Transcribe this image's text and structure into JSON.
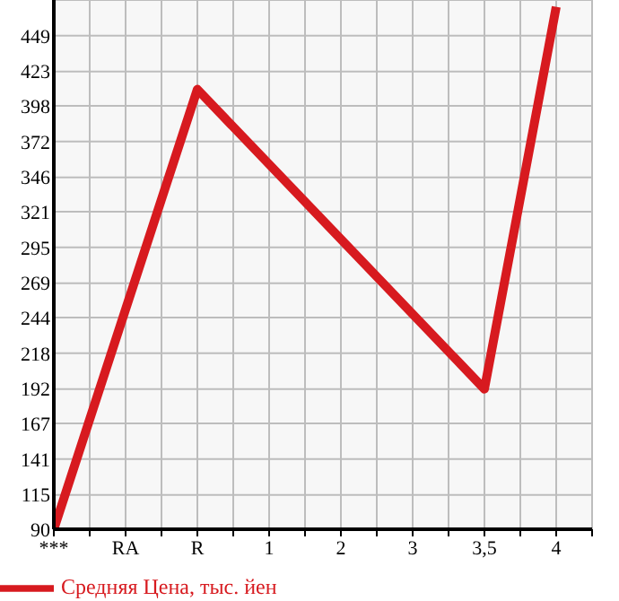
{
  "chart_data": {
    "type": "line",
    "categories": [
      "***",
      "RA",
      "R",
      "1",
      "2",
      "3",
      "3,5",
      "4"
    ],
    "series": [
      {
        "name": "Средняя Цена, тыс. йен",
        "color": "#d71a1f",
        "values": [
          90,
          null,
          410,
          null,
          null,
          null,
          192,
          470
        ]
      }
    ],
    "ylim": [
      90,
      475
    ],
    "yticks": [
      90,
      115,
      141,
      167,
      192,
      218,
      244,
      269,
      295,
      321,
      346,
      372,
      398,
      423,
      449
    ],
    "grid": true,
    "legend": "bottom",
    "marker": "none",
    "line_style": "solid"
  }
}
